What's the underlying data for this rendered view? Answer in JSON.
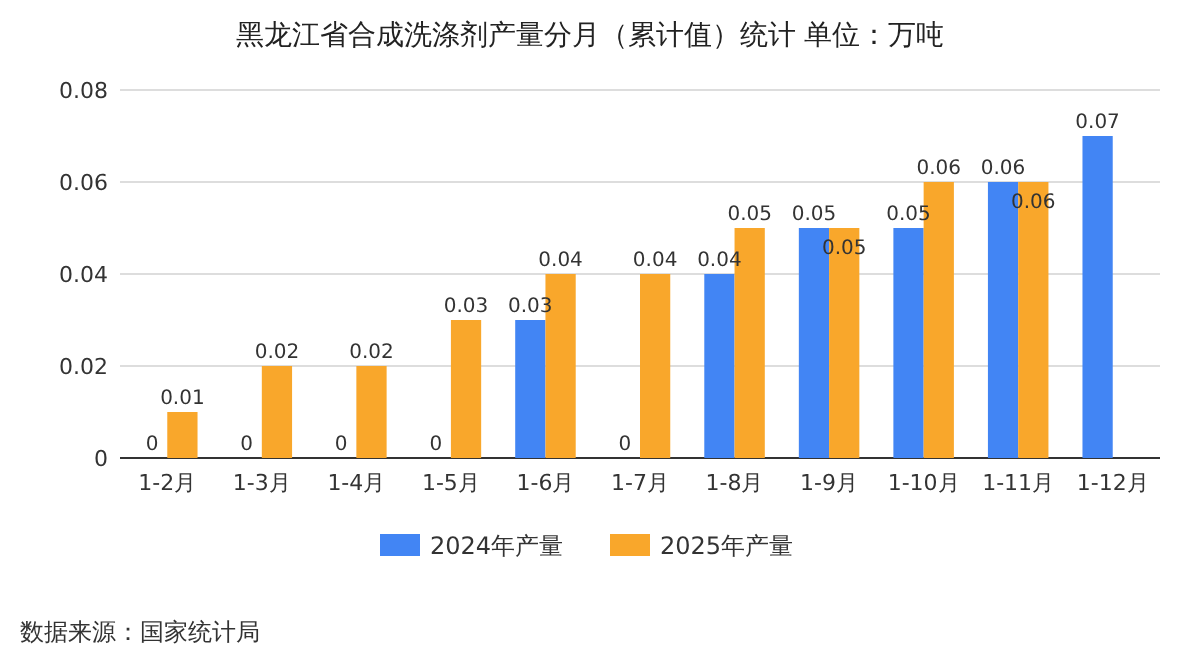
{
  "chart_data": {
    "type": "bar",
    "title": "黑龙江省合成洗涤剂产量分月（累计值）统计  单位：万吨",
    "categories": [
      "1-2月",
      "1-3月",
      "1-4月",
      "1-5月",
      "1-6月",
      "1-7月",
      "1-8月",
      "1-9月",
      "1-10月",
      "1-11月",
      "1-12月"
    ],
    "series": [
      {
        "name": "2024年产量",
        "color": "#4285f4",
        "values": [
          0,
          0,
          0,
          0,
          0.03,
          0,
          0.04,
          0.05,
          0.05,
          0.06,
          0.07
        ]
      },
      {
        "name": "2025年产量",
        "color": "#f9a72b",
        "values": [
          0.01,
          0.02,
          0.02,
          0.03,
          0.04,
          0.04,
          0.05,
          0.05,
          0.06,
          0.06,
          null
        ]
      }
    ],
    "ylim": [
      0,
      0.08
    ],
    "yticks": [
      0,
      0.02,
      0.04,
      0.06,
      0.08
    ],
    "grid": "y",
    "legend": "bottom",
    "data_labels": true,
    "annotations": [
      "数据来源：国家统计局"
    ]
  }
}
